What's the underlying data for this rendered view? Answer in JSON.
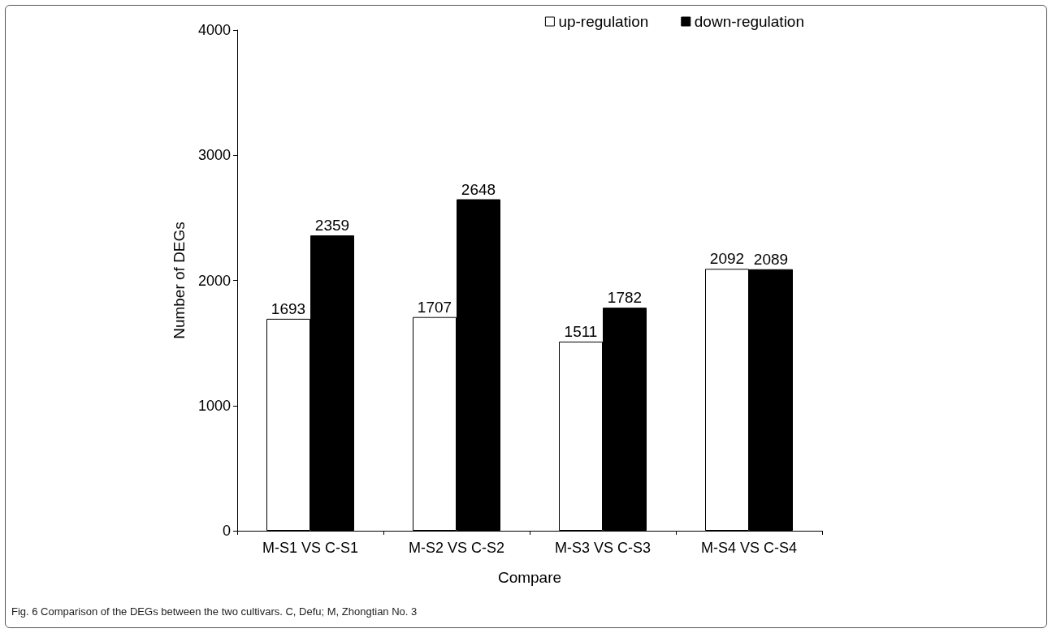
{
  "chart_data": {
    "type": "bar",
    "xlabel": "Compare",
    "ylabel": "Number of DEGs",
    "categories": [
      "M-S1 VS C-S1",
      "M-S2 VS C-S2",
      "M-S3 VS C-S3",
      "M-S4 VS C-S4"
    ],
    "series": [
      {
        "name": "up-regulation",
        "color": "#ffffff",
        "values": [
          1693,
          1707,
          1511,
          2092
        ]
      },
      {
        "name": "down-regulation",
        "color": "#000000",
        "values": [
          2359,
          2648,
          1782,
          2089
        ]
      }
    ],
    "ylim": [
      0,
      4000
    ],
    "yticks": [
      0,
      1000,
      2000,
      3000,
      4000
    ],
    "grid": false,
    "legend": "top right",
    "data_labels": true,
    "annotations": [
      "Fig. 6 Comparison of the DEGs between the two cultivars. C, Defu; M, Zhongtian No. 3"
    ]
  }
}
